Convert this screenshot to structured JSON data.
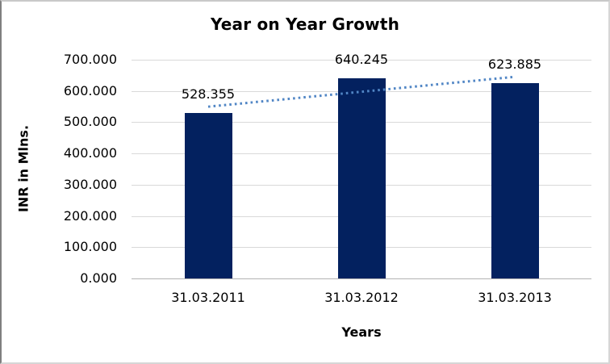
{
  "chart_data": {
    "type": "bar",
    "title": "Year on Year Growth",
    "xlabel": "Years",
    "ylabel": "INR in Mlns.",
    "categories": [
      "31.03.2011",
      "31.03.2012",
      "31.03.2013"
    ],
    "values": [
      528.355,
      640.245,
      623.885
    ],
    "value_labels": [
      "528.355",
      "640.245",
      "623.885"
    ],
    "ylim": [
      0,
      700
    ],
    "ytick_step": 100,
    "ytick_labels": [
      "0.000",
      "100.000",
      "200.000",
      "300.000",
      "400.000",
      "500.000",
      "600.000",
      "700.000"
    ],
    "grid": true,
    "legend": "none",
    "bar_color": "#03215f",
    "gridline_color": "#d9d9d9",
    "axis_line_color": "#b3b3b3",
    "trendline": {
      "type": "linear",
      "style": "dotted",
      "color": "#5186c5",
      "start_value": 549.7,
      "end_value": 645.3
    }
  }
}
